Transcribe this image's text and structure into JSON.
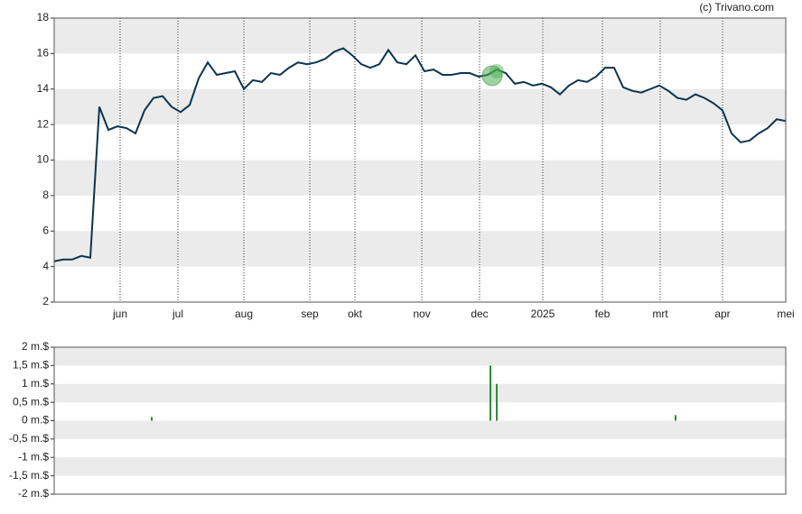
{
  "credit": "(c) Trivano.com",
  "chart_data": [
    {
      "type": "line",
      "color": "#0b3550",
      "values": [
        4.3,
        4.4,
        4.4,
        4.6,
        4.5,
        13,
        11.7,
        11.9,
        11.8,
        11.5,
        12.8,
        13.5,
        13.6,
        13,
        12.7,
        13.1,
        14.6,
        15.5,
        14.8,
        14.9,
        15,
        14,
        14.5,
        14.4,
        14.9,
        14.8,
        15.2,
        15.5,
        15.4,
        15.5,
        15.7,
        16.1,
        16.3,
        15.9,
        15.4,
        15.2,
        15.4,
        16.2,
        15.5,
        15.4,
        15.9,
        15,
        15.1,
        14.8,
        14.8,
        14.9,
        14.9,
        14.7,
        14.8,
        15.1,
        14.9,
        14.3,
        14.4,
        14.2,
        14.3,
        14.1,
        13.7,
        14.2,
        14.5,
        14.4,
        14.7,
        15.2,
        15.2,
        14.1,
        13.9,
        13.8,
        14,
        14.2,
        13.9,
        13.5,
        13.4,
        13.7,
        13.5,
        13.2,
        12.8,
        11.5,
        11,
        11.1,
        11.5,
        11.8,
        12.3,
        12.2
      ],
      "xlim": [
        0,
        81
      ],
      "xticks": [
        {
          "value": 7.3,
          "label": "jun"
        },
        {
          "value": 13.7,
          "label": "jul"
        },
        {
          "value": 21,
          "label": "aug"
        },
        {
          "value": 28.3,
          "label": "sep"
        },
        {
          "value": 33.3,
          "label": "okt"
        },
        {
          "value": 40.7,
          "label": "nov"
        },
        {
          "value": 47.1,
          "label": "dec"
        },
        {
          "value": 54.1,
          "label": "2025"
        },
        {
          "value": 60.7,
          "label": "feb"
        },
        {
          "value": 67.1,
          "label": "mrt"
        },
        {
          "value": 74,
          "label": "apr"
        },
        {
          "value": 81,
          "label": "mei"
        }
      ],
      "ylim": [
        2,
        18
      ],
      "yticks": [
        2,
        4,
        6,
        8,
        10,
        12,
        14,
        16,
        18
      ]
    },
    {
      "type": "bar",
      "color": "#2e8b3a",
      "x": [
        10.8,
        48.3,
        49,
        68.8
      ],
      "values": [
        100000,
        1500000,
        1000000,
        150000
      ],
      "xlim": [
        0,
        81
      ],
      "ylim": [
        -2000000,
        2000000
      ],
      "yticks": [
        {
          "value": 2000000,
          "label": "2 m.$"
        },
        {
          "value": 1500000,
          "label": "1,5 m.$"
        },
        {
          "value": 1000000,
          "label": "1 m.$"
        },
        {
          "value": 500000,
          "label": "0,5 m.$"
        },
        {
          "value": 0,
          "label": "0 m.$"
        },
        {
          "value": -500000,
          "label": "-0,5 m.$"
        },
        {
          "value": -1000000,
          "label": "-1 m.$"
        },
        {
          "value": -1500000,
          "label": "-1,5 m.$"
        },
        {
          "value": -2000000,
          "label": "-2 m.$"
        }
      ]
    }
  ]
}
